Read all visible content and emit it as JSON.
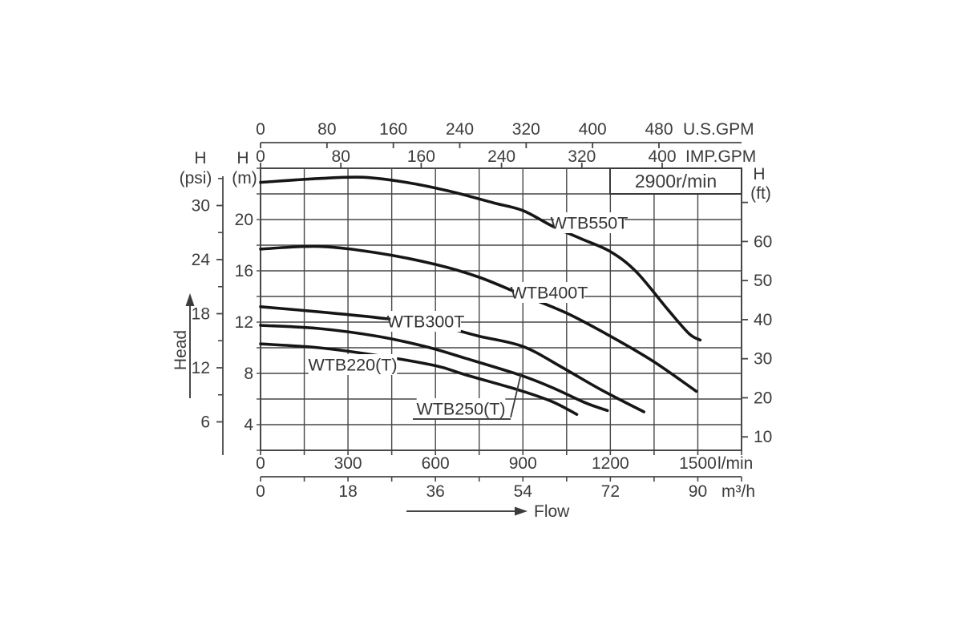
{
  "chart_data": {
    "type": "line",
    "annotation": "2900r/min",
    "xlabel": "Flow",
    "ylabel": "Head",
    "grid": true,
    "x_unit_primary": "l/min",
    "y_unit_primary": "m",
    "xlim_l_min": [
      0,
      1650
    ],
    "ylim_m": [
      2,
      24
    ],
    "x_axes": [
      {
        "id": "us_gpm",
        "unit": "U.S.GPM",
        "ticks": [
          0,
          80,
          160,
          240,
          320,
          400,
          480
        ]
      },
      {
        "id": "imp_gpm",
        "unit": "IMP.GPM",
        "ticks": [
          0,
          80,
          160,
          240,
          320,
          400
        ]
      },
      {
        "id": "l_min",
        "unit": "l/min",
        "ticks": [
          0,
          300,
          600,
          900,
          1200,
          1500
        ]
      },
      {
        "id": "m3_h",
        "unit": "m³/h",
        "ticks": [
          0,
          18,
          36,
          54,
          72,
          90
        ]
      }
    ],
    "y_axes": [
      {
        "id": "head_psi",
        "name": "H",
        "unit": "(psi)",
        "ticks": [
          6,
          12,
          18,
          24,
          30
        ],
        "minor_ticks": [
          9,
          15,
          21,
          27,
          33
        ]
      },
      {
        "id": "head_m",
        "name": "H",
        "unit": "(m)",
        "ticks": [
          4,
          8,
          12,
          16,
          20
        ]
      },
      {
        "id": "head_ft",
        "name": "H",
        "unit": "(ft)",
        "ticks": [
          10,
          20,
          30,
          40,
          50,
          60
        ],
        "minor_ticks": [
          70
        ]
      }
    ],
    "series": [
      {
        "name": "WTB550T",
        "points_l_min_m": [
          [
            0,
            22.9
          ],
          [
            200,
            23.2
          ],
          [
            350,
            23.3
          ],
          [
            500,
            22.9
          ],
          [
            650,
            22.2
          ],
          [
            800,
            21.3
          ],
          [
            900,
            20.7
          ],
          [
            1000,
            19.5
          ],
          [
            1100,
            18.5
          ],
          [
            1200,
            17.5
          ],
          [
            1290,
            15.9
          ],
          [
            1400,
            12.9
          ],
          [
            1470,
            11.1
          ],
          [
            1508,
            10.6
          ]
        ]
      },
      {
        "name": "WTB400T",
        "points_l_min_m": [
          [
            0,
            17.7
          ],
          [
            200,
            17.9
          ],
          [
            400,
            17.4
          ],
          [
            600,
            16.5
          ],
          [
            750,
            15.5
          ],
          [
            900,
            14.1
          ],
          [
            1050,
            12.7
          ],
          [
            1200,
            10.9
          ],
          [
            1350,
            8.9
          ],
          [
            1495,
            6.6
          ]
        ]
      },
      {
        "name": "WTB300T",
        "points_l_min_m": [
          [
            0,
            13.2
          ],
          [
            200,
            12.8
          ],
          [
            400,
            12.35
          ],
          [
            600,
            11.75
          ],
          [
            750,
            10.9
          ],
          [
            900,
            10.1
          ],
          [
            1032,
            8.5
          ],
          [
            1170,
            6.7
          ],
          [
            1315,
            5.0
          ]
        ]
      },
      {
        "name": "WTB250(T)",
        "points_l_min_m": [
          [
            0,
            11.75
          ],
          [
            200,
            11.5
          ],
          [
            400,
            10.9
          ],
          [
            564,
            10.1
          ],
          [
            700,
            9.2
          ],
          [
            886,
            7.9
          ],
          [
            1000,
            6.9
          ],
          [
            1115,
            5.7
          ],
          [
            1190,
            5.1
          ]
        ]
      },
      {
        "name": "WTB220(T)",
        "points_l_min_m": [
          [
            0,
            10.3
          ],
          [
            200,
            10.0
          ],
          [
            400,
            9.4
          ],
          [
            600,
            8.6
          ],
          [
            702,
            7.9
          ],
          [
            886,
            6.7
          ],
          [
            1000,
            5.8
          ],
          [
            1085,
            4.8
          ]
        ]
      }
    ]
  },
  "colors": {
    "curve": "#161616",
    "grid": "#474747",
    "text": "#3c3c3c",
    "background": "#ffffff"
  }
}
